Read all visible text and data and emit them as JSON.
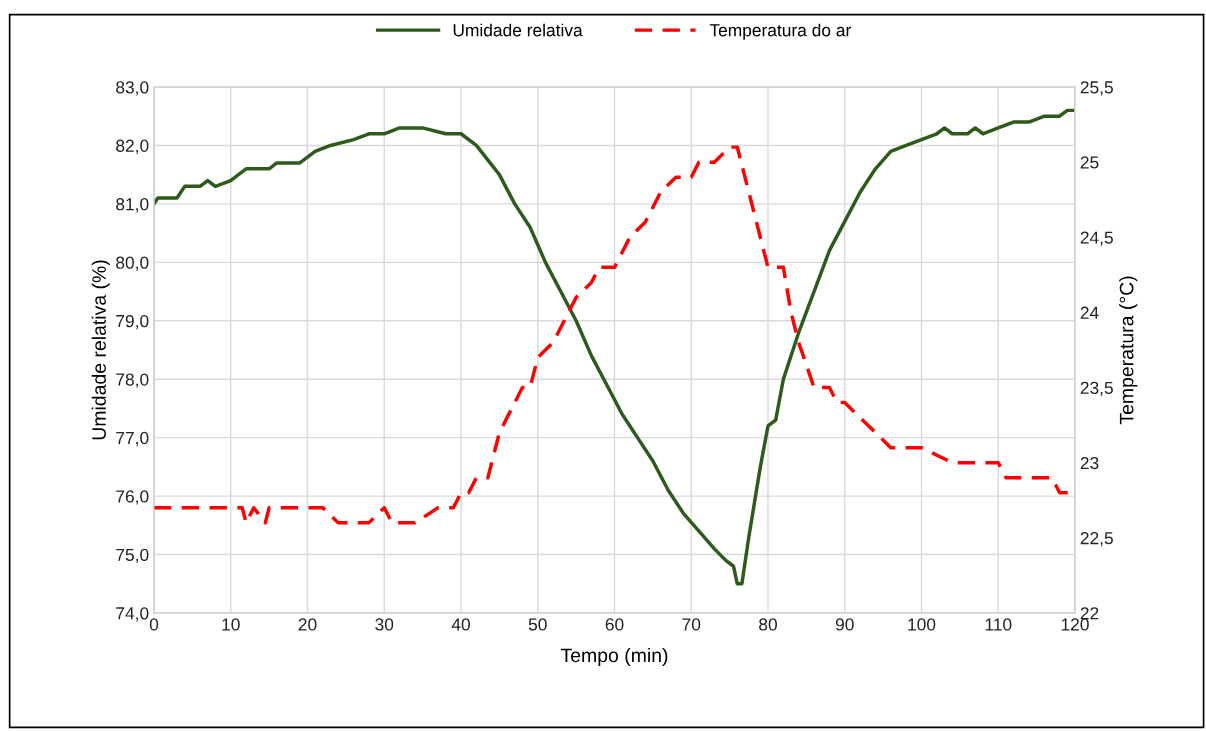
{
  "chart_data": {
    "type": "line",
    "xlabel": "Tempo (min)",
    "ylabel": "Umidade relativa (%)",
    "y2label": "Temperatura (°C)",
    "legend": "top",
    "grid": true,
    "xlim": [
      0,
      120
    ],
    "xticks": [
      0,
      10,
      20,
      30,
      40,
      50,
      60,
      70,
      80,
      90,
      100,
      110,
      120
    ],
    "ylim": [
      74,
      83
    ],
    "yticks": [
      {
        "value": 74,
        "label": "74,0"
      },
      {
        "value": 75,
        "label": "75,0"
      },
      {
        "value": 76,
        "label": "76,0"
      },
      {
        "value": 77,
        "label": "77,0"
      },
      {
        "value": 78,
        "label": "78,0"
      },
      {
        "value": 79,
        "label": "79,0"
      },
      {
        "value": 80,
        "label": "80,0"
      },
      {
        "value": 81,
        "label": "81,0"
      },
      {
        "value": 82,
        "label": "82,0"
      },
      {
        "value": 83,
        "label": "83,0"
      }
    ],
    "y2lim": [
      22,
      25.5
    ],
    "y2ticks": [
      22,
      {
        "value": 22.5,
        "label": "22,5"
      },
      23,
      {
        "value": 23.5,
        "label": "23,5"
      },
      24,
      {
        "value": 24.5,
        "label": "24,5"
      },
      25,
      {
        "value": 25.5,
        "label": "25,5"
      }
    ],
    "series": [
      {
        "name": "Umidade relativa",
        "color": "#2e5a1c",
        "line_style": "solid",
        "x": [
          0,
          0.5,
          3,
          4,
          6,
          7,
          8,
          10,
          11,
          12,
          15,
          16,
          19,
          21,
          23,
          26,
          28,
          30,
          32,
          35,
          38,
          40,
          42,
          45,
          47,
          49,
          51,
          53,
          55,
          57,
          59,
          61,
          63,
          65,
          67,
          69,
          71,
          73,
          74.5,
          75.5,
          76,
          76.6,
          77.5,
          79,
          80,
          81,
          82,
          84,
          86,
          88,
          90,
          92,
          94,
          96,
          98,
          100,
          102,
          103,
          104,
          106,
          107,
          108,
          110,
          112,
          114,
          116,
          118,
          119,
          120
        ],
        "values": [
          81.0,
          81.1,
          81.1,
          81.3,
          81.3,
          81.4,
          81.3,
          81.4,
          81.5,
          81.6,
          81.6,
          81.7,
          81.7,
          81.9,
          82.0,
          82.1,
          82.2,
          82.2,
          82.3,
          82.3,
          82.2,
          82.2,
          82.0,
          81.5,
          81.0,
          80.6,
          80.0,
          79.5,
          79.0,
          78.4,
          77.9,
          77.4,
          77.0,
          76.6,
          76.1,
          75.7,
          75.4,
          75.1,
          74.9,
          74.8,
          74.5,
          74.5,
          75.3,
          76.5,
          77.2,
          77.3,
          78.0,
          78.8,
          79.5,
          80.2,
          80.7,
          81.2,
          81.6,
          81.9,
          82.0,
          82.1,
          82.2,
          82.3,
          82.2,
          82.2,
          82.3,
          82.2,
          82.3,
          82.4,
          82.4,
          82.5,
          82.5,
          82.6,
          82.6
        ]
      },
      {
        "name": "Temperatura do ar",
        "color": "#ff0000",
        "line_style": "dashed",
        "axis": "y2",
        "x": [
          0,
          11.5,
          12,
          13,
          14.5,
          15,
          22,
          24,
          28,
          30,
          31,
          34,
          37,
          39,
          40,
          41,
          42,
          43.5,
          45,
          46,
          48,
          49,
          50,
          52,
          53,
          55,
          57,
          58,
          60,
          62,
          64,
          66,
          68,
          70,
          71,
          73,
          75,
          76,
          78,
          80,
          82,
          83,
          84,
          86,
          88,
          89,
          90,
          92,
          94,
          96,
          98,
          100,
          104,
          108,
          110,
          111,
          112,
          117,
          118,
          120
        ],
        "values": [
          22.7,
          22.7,
          22.6,
          22.7,
          22.6,
          22.7,
          22.7,
          22.6,
          22.6,
          22.7,
          22.6,
          22.6,
          22.7,
          22.7,
          22.8,
          22.8,
          22.9,
          22.9,
          23.2,
          23.3,
          23.5,
          23.5,
          23.7,
          23.8,
          23.9,
          24.1,
          24.2,
          24.3,
          24.3,
          24.5,
          24.6,
          24.8,
          24.9,
          24.9,
          25.0,
          25.0,
          25.1,
          25.1,
          24.7,
          24.3,
          24.3,
          24.0,
          23.8,
          23.5,
          23.5,
          23.4,
          23.4,
          23.3,
          23.2,
          23.1,
          23.1,
          23.1,
          23.0,
          23.0,
          23.0,
          22.9,
          22.9,
          22.9,
          22.8,
          22.8
        ]
      }
    ]
  }
}
